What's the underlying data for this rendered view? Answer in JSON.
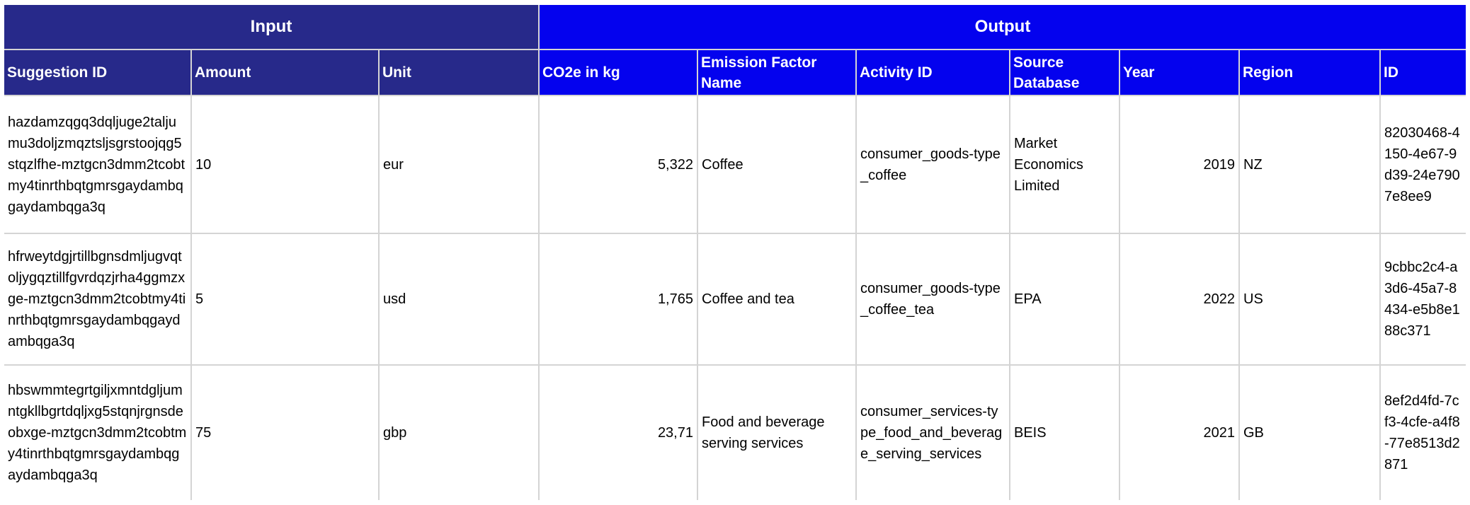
{
  "table": {
    "groups": {
      "input": "Input",
      "output": "Output"
    },
    "columns": {
      "suggestion_id": "Suggestion ID",
      "amount": "Amount",
      "unit": "Unit",
      "co2e": "CO2e in kg",
      "ef_name": "Emission Factor Name",
      "activity_id": "Activity ID",
      "source_db": "Source Database",
      "year": "Year",
      "region": "Region",
      "id": "ID"
    },
    "rows": [
      {
        "suggestion_id": "hazdamzqgq3dqljuge2taljumu3doljzmqztsljsgrstoojqg5stqzlfhe-mztgcn3dmm2tcobtmy4tinrthbqtgmrsgaydambqgaydambqga3q",
        "amount": "10",
        "unit": "eur",
        "co2e": "5,322",
        "ef_name": "Coffee",
        "activity_id": "consumer_goods-type_coffee",
        "source_db": "Market Economics Limited",
        "year": "2019",
        "region": "NZ",
        "id": "82030468-4150-4e67-9d39-24e7907e8ee9"
      },
      {
        "suggestion_id": "hfrweytdgjrtillbgnsdmljugvqtoljygqztillfgvrdqzjrha4ggmzxge-mztgcn3dmm2tcobtmy4tinrthbqtgmrsgaydambqgaydambqga3q",
        "amount": "5",
        "unit": "usd",
        "co2e": "1,765",
        "ef_name": "Coffee and tea",
        "activity_id": "consumer_goods-type_coffee_tea",
        "source_db": "EPA",
        "year": "2022",
        "region": "US",
        "id": "9cbbc2c4-a3d6-45a7-8434-e5b8e188c371"
      },
      {
        "suggestion_id": "hbswmmtegrtgiljxmntdgljumntgkllbgrtdqljxg5stqnjrgnsdeobxge-mztgcn3dmm2tcobtmy4tinrthbqtgmrsgaydambqgaydambqga3q",
        "amount": "75",
        "unit": "gbp",
        "co2e": "23,71",
        "ef_name": "Food and beverage serving services",
        "activity_id": "consumer_services-type_food_and_beverage_serving_services",
        "source_db": "BEIS",
        "year": "2021",
        "region": "GB",
        "id": "8ef2d4fd-7cf3-4cfe-a4f8-77e8513d2871"
      }
    ]
  }
}
